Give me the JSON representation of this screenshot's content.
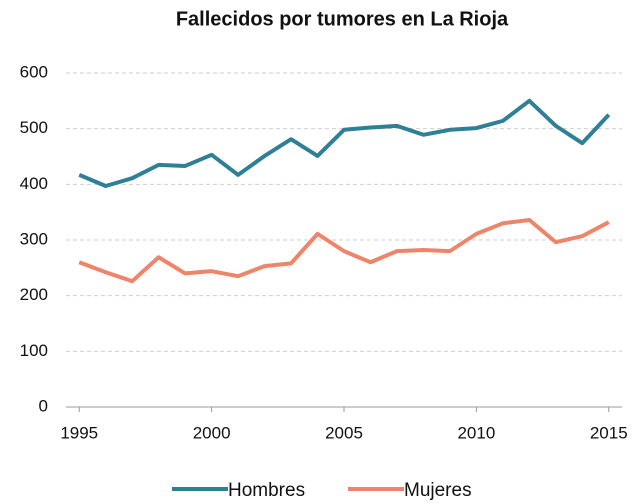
{
  "chart_data": {
    "type": "line",
    "title": "Fallecidos por tumores en La Rioja",
    "x": [
      1995,
      1996,
      1997,
      1998,
      1999,
      2000,
      2001,
      2002,
      2003,
      2004,
      2005,
      2006,
      2007,
      2008,
      2009,
      2010,
      2011,
      2012,
      2013,
      2014,
      2015
    ],
    "series": [
      {
        "name": "Hombres",
        "color": "#2f7f96",
        "values": [
          417,
          397,
          411,
          435,
          433,
          453,
          417,
          451,
          481,
          451,
          498,
          502,
          505,
          489,
          498,
          501,
          514,
          550,
          505,
          474,
          525
        ]
      },
      {
        "name": "Mujeres",
        "color": "#ee846a",
        "values": [
          260,
          242,
          226,
          269,
          240,
          244,
          235,
          253,
          258,
          311,
          280,
          260,
          280,
          282,
          280,
          311,
          330,
          336,
          296,
          307,
          332
        ]
      }
    ],
    "xlim": [
      1994.5,
      2015.5
    ],
    "xticks": [
      1995,
      2000,
      2005,
      2010,
      2015
    ],
    "ylim": [
      0,
      600
    ],
    "yticks": [
      0,
      100,
      200,
      300,
      400,
      500,
      600
    ],
    "grid": true,
    "legend": "bottom"
  }
}
